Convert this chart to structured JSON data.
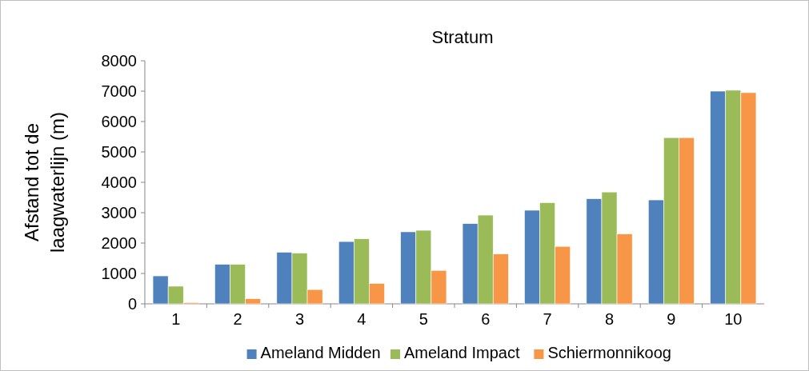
{
  "chart_data": {
    "type": "bar",
    "title": "Stratum",
    "ylabel": "Afstand tot de laagwaterlijn (m)",
    "categories": [
      "1",
      "2",
      "3",
      "4",
      "5",
      "6",
      "7",
      "8",
      "9",
      "10"
    ],
    "series": [
      {
        "name": "Ameland Midden",
        "color": "#4f81bd",
        "values": [
          920,
          1300,
          1700,
          2050,
          2370,
          2640,
          3080,
          3460,
          3420,
          7000
        ]
      },
      {
        "name": "Ameland Impact",
        "color": "#9bbb59",
        "values": [
          580,
          1300,
          1670,
          2140,
          2420,
          2920,
          3330,
          3680,
          5470,
          7030
        ]
      },
      {
        "name": "Schiermonnikoog",
        "color": "#f79646",
        "values": [
          40,
          170,
          470,
          670,
          1100,
          1640,
          1890,
          2300,
          5470,
          6950
        ]
      }
    ],
    "ylim": [
      0,
      8000
    ],
    "yticks": [
      0,
      1000,
      2000,
      3000,
      4000,
      5000,
      6000,
      7000,
      8000
    ],
    "grid": false,
    "legend": "bottom"
  }
}
